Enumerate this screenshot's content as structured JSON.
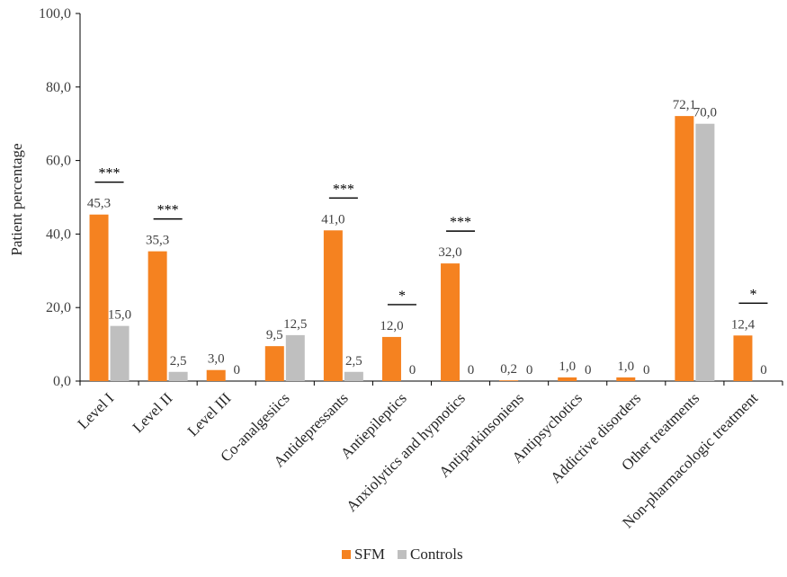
{
  "chart_data": {
    "type": "bar",
    "title": "",
    "xlabel": "",
    "ylabel": "Patient percentage",
    "ylim": [
      0,
      100
    ],
    "yticks": [
      "0,0",
      "20,0",
      "40,0",
      "60,0",
      "80,0",
      "100,0"
    ],
    "categories": [
      "Level I",
      "Level II",
      "Level III",
      "Co-analgesiics",
      "Antidepressants",
      "Antiepileptics",
      "Anxiolytics and hypnotics",
      "Antiparkinsoniens",
      "Antipsychotics",
      "Addictive disorders",
      "Other treatments",
      "Non-pharmacologic treatment"
    ],
    "series": [
      {
        "name": "SFM",
        "color": "#F58220",
        "values": [
          45.3,
          35.3,
          3.0,
          9.5,
          41.0,
          12.0,
          32.0,
          0.2,
          1.0,
          1.0,
          72.1,
          12.4
        ],
        "labels": [
          "45,3",
          "35,3",
          "3,0",
          "9,5",
          "41,0",
          "12,0",
          "32,0",
          "0,2",
          "1,0",
          "1,0",
          "72,1",
          "12,4"
        ]
      },
      {
        "name": "Controls",
        "color": "#BFBFBF",
        "values": [
          15.0,
          2.5,
          0,
          12.5,
          2.5,
          0,
          0,
          0,
          0,
          0,
          70.0,
          0
        ],
        "labels": [
          "15,0",
          "2,5",
          "0",
          "12,5",
          "2,5",
          "0",
          "0",
          "0",
          "0",
          "0",
          "70,0",
          "0"
        ]
      }
    ],
    "significance": [
      "***",
      "***",
      "",
      "",
      "***",
      "*",
      "***",
      "",
      "",
      "",
      "",
      "*"
    ],
    "legend": "bottom-center",
    "grid": false
  }
}
